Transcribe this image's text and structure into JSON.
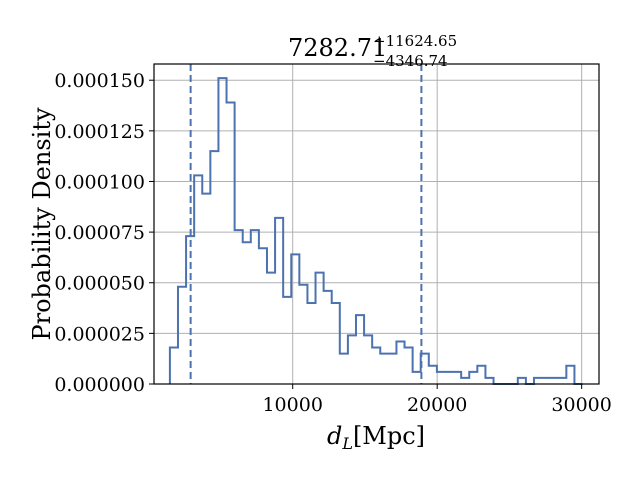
{
  "chart_data": {
    "type": "histogram",
    "title": {
      "main": "7282.71",
      "upper": "+11624.65",
      "lower": "−4346.74"
    },
    "xlabel": {
      "symbol": "d",
      "subscript": "L",
      "unit": "[Mpc]"
    },
    "ylabel": "Probability Density",
    "xlim": [
      400,
      31200
    ],
    "ylim": [
      0,
      0.000158
    ],
    "x_ticks": [
      {
        "value": 10000,
        "label": "10000"
      },
      {
        "value": 20000,
        "label": "20000"
      },
      {
        "value": 30000,
        "label": "30000"
      }
    ],
    "y_ticks": [
      {
        "value": 0,
        "label": "0.000000"
      },
      {
        "value": 2.5e-05,
        "label": "0.000025"
      },
      {
        "value": 5e-05,
        "label": "0.000050"
      },
      {
        "value": 7.5e-05,
        "label": "0.000075"
      },
      {
        "value": 0.0001,
        "label": "0.000100"
      },
      {
        "value": 0.000125,
        "label": "0.000125"
      },
      {
        "value": 0.00015,
        "label": "0.000150"
      }
    ],
    "grid": true,
    "histtype": "step",
    "color": "#4c72b0",
    "bin_edges": [
      1500,
      2060,
      2620,
      3180,
      3740,
      4300,
      4860,
      5420,
      5980,
      6540,
      7100,
      7660,
      8220,
      8780,
      9340,
      9900,
      10460,
      11020,
      11580,
      12140,
      12700,
      13260,
      13820,
      14380,
      14940,
      15500,
      16060,
      16620,
      17180,
      17740,
      18300,
      18860,
      19420,
      19980,
      20540,
      21100,
      21660,
      22220,
      22780,
      23340,
      23900,
      24460,
      25020,
      25580,
      26140,
      26700,
      27260,
      27820,
      28380,
      28940,
      29500,
      30060
    ],
    "densities": [
      1.8e-05,
      4.8e-05,
      7.3e-05,
      0.000103,
      9.4e-05,
      0.000115,
      0.000151,
      0.000139,
      7.6e-05,
      7e-05,
      7.6e-05,
      6.7e-05,
      5.5e-05,
      8.2e-05,
      4.3e-05,
      6.4e-05,
      4.9e-05,
      4e-05,
      5.5e-05,
      4.6e-05,
      4e-05,
      1.5e-05,
      2.4e-05,
      3.4e-05,
      2.4e-05,
      1.8e-05,
      1.5e-05,
      1.5e-05,
      2.1e-05,
      1.8e-05,
      6e-06,
      1.5e-05,
      9e-06,
      6e-06,
      6e-06,
      6e-06,
      3e-06,
      6e-06,
      9e-06,
      3e-06,
      0,
      0,
      0,
      3e-06,
      0,
      3e-06,
      3e-06,
      3e-06,
      3e-06,
      9e-06,
      0
    ],
    "credible_interval_lines": [
      2935,
      18907
    ]
  }
}
